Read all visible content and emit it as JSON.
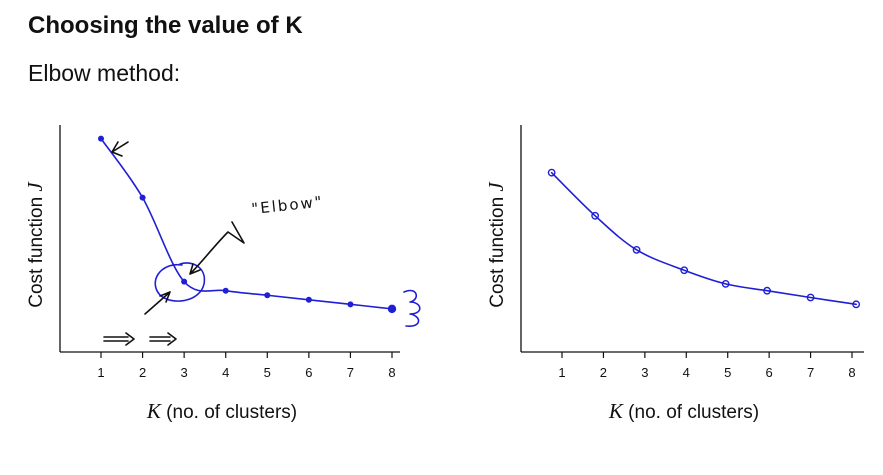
{
  "header": {
    "title": "Choosing the value of K",
    "subtitle": "Elbow method:"
  },
  "annotations": {
    "elbow_label": "\"Elbow\""
  },
  "colors": {
    "curve": "#1f1fd6",
    "axis": "#111111"
  },
  "chart_data": [
    {
      "type": "line",
      "title": "",
      "xlabel_symbol": "K",
      "xlabel_text": " (no. of clusters)",
      "ylabel_text": "Cost function ",
      "ylabel_symbol": "J",
      "categories": [
        "1",
        "2",
        "3",
        "4",
        "5",
        "6",
        "7",
        "8"
      ],
      "x": [
        1,
        2,
        3,
        4,
        5,
        6,
        7,
        8
      ],
      "values": [
        0.94,
        0.68,
        0.31,
        0.27,
        0.25,
        0.23,
        0.21,
        0.19
      ],
      "xlim": [
        0,
        8.2
      ],
      "ylim": [
        0,
        1
      ],
      "grid": false
    },
    {
      "type": "line",
      "title": "",
      "xlabel_symbol": "K",
      "xlabel_text": " (no. of clusters)",
      "ylabel_text": "Cost function ",
      "ylabel_symbol": "J",
      "categories": [
        "1",
        "2",
        "3",
        "4",
        "5",
        "6",
        "7",
        "8"
      ],
      "x": [
        0.75,
        1.8,
        2.8,
        3.95,
        4.95,
        5.95,
        7.0,
        8.1
      ],
      "values": [
        0.79,
        0.6,
        0.45,
        0.36,
        0.3,
        0.27,
        0.24,
        0.21
      ],
      "xlim": [
        0,
        8.2
      ],
      "ylim": [
        0,
        1
      ],
      "grid": false
    }
  ]
}
